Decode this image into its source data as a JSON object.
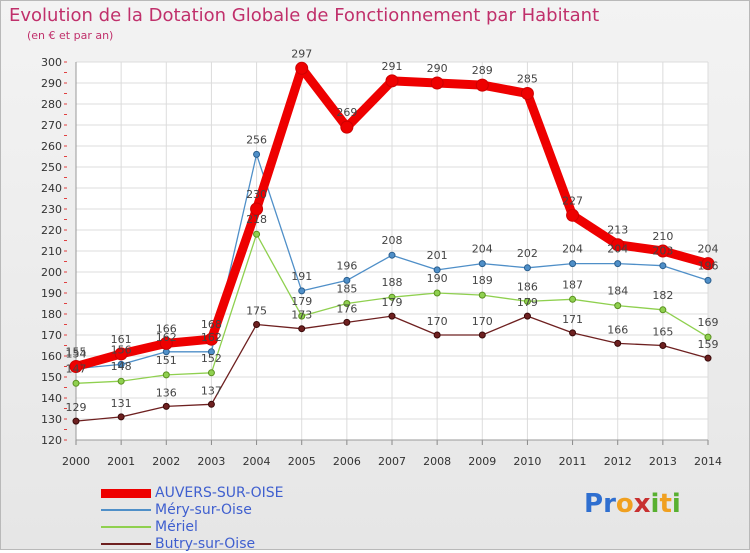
{
  "title": "Evolution de la Dotation Globale de Fonctionnement par Habitant",
  "subtitle": "(en € et par an)",
  "logo": {
    "text": "Proxiti",
    "letter_colors": [
      "#2f6fd0",
      "#2f6fd0",
      "#f0a020",
      "#c83030",
      "#58b030",
      "#f0a020",
      "#58b030"
    ]
  },
  "chart_data": {
    "type": "line",
    "title": "Evolution de la Dotation Globale de Fonctionnement par Habitant",
    "subtitle": "(en € et par an)",
    "x": [
      "2000",
      "2001",
      "2002",
      "2003",
      "2004",
      "2005",
      "2006",
      "2007",
      "2008",
      "2009",
      "2010",
      "2011",
      "2012",
      "2013",
      "2014"
    ],
    "ylim": [
      120,
      300
    ],
    "yticks": [
      120,
      130,
      140,
      150,
      160,
      170,
      180,
      190,
      200,
      210,
      220,
      230,
      240,
      250,
      260,
      270,
      280,
      290,
      300
    ],
    "grid": true,
    "legend_position": "bottom-left",
    "series": [
      {
        "name": "AUVERS-SUR-OISE",
        "color": "#ee0000",
        "values": [
          155,
          161,
          166,
          168,
          230,
          297,
          269,
          291,
          290,
          289,
          285,
          227,
          213,
          210,
          204
        ]
      },
      {
        "name": "Méry-sur-Oise",
        "color": "#4f8fc8",
        "values": [
          154,
          156,
          162,
          162,
          256,
          191,
          196,
          208,
          201,
          204,
          202,
          204,
          204,
          203,
          196
        ]
      },
      {
        "name": "Mériel",
        "color": "#8fd04f",
        "values": [
          147,
          148,
          151,
          152,
          218,
          179,
          185,
          188,
          190,
          189,
          186,
          187,
          184,
          182,
          169
        ]
      },
      {
        "name": "Butry-sur-Oise",
        "color": "#6e2020",
        "values": [
          129,
          131,
          136,
          137,
          175,
          173,
          176,
          179,
          170,
          170,
          179,
          171,
          166,
          165,
          159
        ]
      }
    ]
  }
}
